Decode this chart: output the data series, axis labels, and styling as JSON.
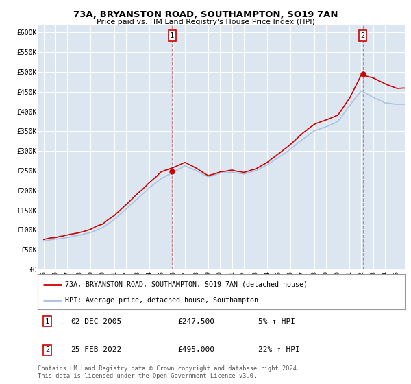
{
  "title1": "73A, BRYANSTON ROAD, SOUTHAMPTON, SO19 7AN",
  "title2": "Price paid vs. HM Land Registry's House Price Index (HPI)",
  "ylabel_ticks": [
    "£0",
    "£50K",
    "£100K",
    "£150K",
    "£200K",
    "£250K",
    "£300K",
    "£350K",
    "£400K",
    "£450K",
    "£500K",
    "£550K",
    "£600K"
  ],
  "ylim": [
    0,
    620000
  ],
  "xlim_start": 1994.5,
  "xlim_end": 2025.7,
  "bg_color": "#dce6f1",
  "grid_color": "#ffffff",
  "sale1_x": 2005.917,
  "sale1_y": 247500,
  "sale2_x": 2022.12,
  "sale2_y": 495000,
  "sale1_label": "02-DEC-2005",
  "sale1_price": "£247,500",
  "sale1_hpi": "5% ↑ HPI",
  "sale2_label": "25-FEB-2022",
  "sale2_price": "£495,000",
  "sale2_hpi": "22% ↑ HPI",
  "legend_line1": "73A, BRYANSTON ROAD, SOUTHAMPTON, SO19 7AN (detached house)",
  "legend_line2": "HPI: Average price, detached house, Southampton",
  "footer": "Contains HM Land Registry data © Crown copyright and database right 2024.\nThis data is licensed under the Open Government Licence v3.0.",
  "line_color_red": "#cc0000",
  "line_color_blue": "#aac4e0"
}
